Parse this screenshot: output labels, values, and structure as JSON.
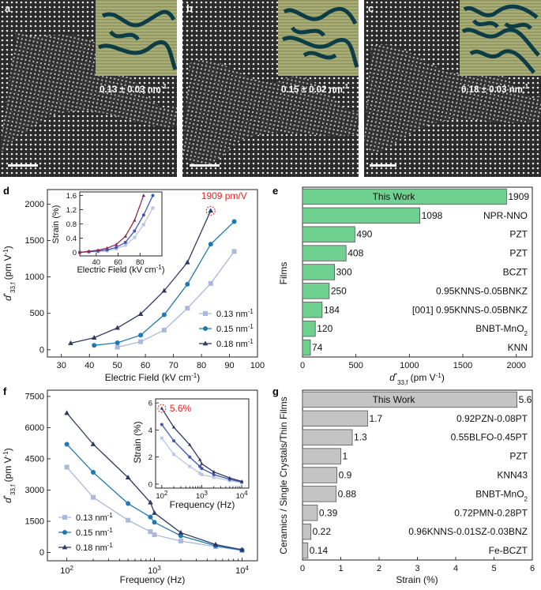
{
  "panels": {
    "a": {
      "label": "a",
      "annotation": "0.13 ± 0.03 nm",
      "sup": "-1"
    },
    "b": {
      "label": "b",
      "annotation": "0.15 ± 0.02 nm",
      "sup": "-1"
    },
    "c": {
      "label": "c",
      "annotation": "0.18 ± 0.03 nm",
      "sup": "-1"
    },
    "d": {
      "label": "d"
    },
    "e": {
      "label": "e"
    },
    "f": {
      "label": "f"
    },
    "g": {
      "label": "g"
    }
  },
  "colors": {
    "light": "#a9b8dc",
    "mid": "#1f78b4",
    "dark": "#2f3a64",
    "inset_light": "#b9c6e6",
    "inset_mid": "#3f57b3",
    "inset_dark": "#8e2a55",
    "bar_green": "#6fd18f",
    "bar_gray": "#c4c4c4",
    "highlight": "#e8231f"
  },
  "chart_data": [
    {
      "panel": "d",
      "type": "line",
      "xlabel": "Electric Field (kV cm",
      "xlabel_sup": "-1",
      "ylabel": "d",
      "ylabel_sub": "33,f",
      "ylabel_unit": "(pm V",
      "xlim": [
        25,
        100
      ],
      "ylim": [
        -100,
        2200
      ],
      "xticks": [
        30,
        40,
        50,
        60,
        70,
        80,
        90,
        100
      ],
      "yticks": [
        0,
        500,
        1000,
        1500,
        2000
      ],
      "series": [
        {
          "name": "0.13 nm",
          "marker": "square",
          "color": "light",
          "x": [
            50,
            58.3,
            66.7,
            75,
            83.3,
            91.7
          ],
          "y": [
            35,
            110,
            270,
            570,
            910,
            1350
          ]
        },
        {
          "name": "0.15 nm",
          "marker": "circle",
          "color": "mid",
          "x": [
            41.7,
            50,
            58.3,
            66.7,
            75,
            83.3,
            91.7
          ],
          "y": [
            60,
            95,
            200,
            480,
            900,
            1450,
            1760
          ]
        },
        {
          "name": "0.18 nm",
          "marker": "triangle",
          "color": "dark",
          "x": [
            33.3,
            41.7,
            50,
            58.3,
            66.7,
            75,
            83.3
          ],
          "y": [
            90,
            165,
            300,
            490,
            810,
            1200,
            1909
          ]
        }
      ],
      "annotation": "1909 pm/V",
      "inset": {
        "xlabel": "Electric Field (kV cm",
        "xlabel_sup": "-1",
        "ylabel": "Strain (%)",
        "xlim": [
          25,
          100
        ],
        "ylim": [
          -0.1,
          1.7
        ],
        "xticks": [
          40,
          60,
          80
        ],
        "yticks": [
          0.0,
          0.4,
          0.8,
          1.2,
          1.6
        ],
        "series": [
          {
            "color": "inset_light",
            "marker": "square",
            "x": [
              25,
              33.3,
              41.7,
              50,
              58.3,
              66.7,
              75,
              83.3,
              91.7
            ],
            "y": [
              0.0,
              0.01,
              0.02,
              0.04,
              0.1,
              0.2,
              0.42,
              0.78,
              1.25
            ]
          },
          {
            "color": "inset_mid",
            "marker": "circle",
            "x": [
              25,
              33.3,
              41.7,
              50,
              58.3,
              66.7,
              75,
              83.3,
              91.7
            ],
            "y": [
              0.0,
              0.02,
              0.04,
              0.07,
              0.14,
              0.28,
              0.6,
              1.05,
              1.6
            ]
          },
          {
            "color": "inset_dark",
            "marker": "triangle",
            "x": [
              25,
              33.3,
              41.7,
              50,
              58.3,
              66.7,
              75,
              83.3
            ],
            "y": [
              0.0,
              0.03,
              0.06,
              0.12,
              0.22,
              0.45,
              0.9,
              1.6
            ]
          }
        ]
      }
    },
    {
      "panel": "e",
      "type": "bar",
      "orientation": "horizontal",
      "ylabel": "Films",
      "xlabel": "d",
      "xlabel_sub": "33,f",
      "xlabel_unit": "(pm V",
      "xlim": [
        0,
        2150
      ],
      "xticks": [
        0,
        500,
        1000,
        1500,
        2000
      ],
      "categories": [
        "This Work",
        "NPR-NNO",
        "PZT",
        "PZT",
        "BCZT",
        "0.95KNNS-0.05BNKZ",
        "[001] 0.95KNNS-0.05BNKZ",
        "BNBT-MnO",
        "KNN"
      ],
      "category_subs": [
        "",
        "",
        "",
        "",
        "",
        "",
        "",
        "2",
        ""
      ],
      "values": [
        1909,
        1098,
        490,
        408,
        300,
        250,
        184,
        120,
        74
      ]
    },
    {
      "panel": "f",
      "type": "line",
      "xscale": "log",
      "xlabel": "Frequency (Hz)",
      "ylabel": "d",
      "ylabel_sub": "33,f",
      "ylabel_unit": "(pm V",
      "xlim": [
        60,
        15000
      ],
      "ylim": [
        -400,
        7800
      ],
      "xticks": [
        100,
        1000,
        10000
      ],
      "yticks": [
        0,
        1500,
        3000,
        4500,
        6000,
        7500
      ],
      "series": [
        {
          "name": "0.13 nm",
          "marker": "square",
          "color": "light",
          "x": [
            100,
            200,
            500,
            900,
            1000,
            2000,
            5000,
            10000
          ],
          "y": [
            4100,
            2650,
            1550,
            1000,
            850,
            550,
            280,
            100
          ]
        },
        {
          "name": "0.15 nm",
          "marker": "circle",
          "color": "mid",
          "x": [
            100,
            200,
            500,
            900,
            1000,
            2000,
            5000,
            10000
          ],
          "y": [
            5200,
            3850,
            2350,
            1700,
            1450,
            800,
            320,
            110
          ]
        },
        {
          "name": "0.18 nm",
          "marker": "triangle",
          "color": "dark",
          "x": [
            100,
            200,
            500,
            900,
            1000,
            2000,
            5000,
            10000
          ],
          "y": [
            6700,
            5200,
            3600,
            2400,
            1900,
            950,
            380,
            130
          ]
        }
      ],
      "inset": {
        "xlabel": "Frequency (Hz)",
        "ylabel": "Strain (%)",
        "xlim": [
          70,
          15000
        ],
        "ylim": [
          -0.3,
          6.3
        ],
        "yticks": [
          0,
          2,
          4,
          6
        ],
        "annotation": "5.6%",
        "series": [
          {
            "color": "inset_light",
            "marker": "square",
            "x": [
              100,
              200,
              500,
              900,
              1000,
              2000,
              5000,
              10000
            ],
            "y": [
              3.4,
              2.2,
              1.3,
              0.8,
              0.7,
              0.5,
              0.25,
              0.1
            ]
          },
          {
            "color": "inset_mid",
            "marker": "circle",
            "x": [
              100,
              200,
              500,
              900,
              1000,
              2000,
              5000,
              10000
            ],
            "y": [
              4.4,
              3.2,
              2.0,
              1.3,
              1.15,
              0.7,
              0.35,
              0.15
            ]
          },
          {
            "color": "dark",
            "marker": "triangle",
            "x": [
              100,
              200,
              500,
              900,
              1000,
              2000,
              5000,
              10000
            ],
            "y": [
              5.6,
              4.2,
              2.9,
              1.8,
              1.5,
              0.9,
              0.45,
              0.2
            ]
          }
        ]
      }
    },
    {
      "panel": "g",
      "type": "bar",
      "orientation": "horizontal",
      "ylabel": "Ceramics / Single Crystals/Thin Films",
      "xlabel": "Strain (%)",
      "xlim": [
        0,
        6
      ],
      "xticks": [
        0,
        1,
        2,
        3,
        4,
        5,
        6
      ],
      "categories": [
        "This Work",
        "0.92PZN-0.08PT",
        "0.55BLFO-0.45PT",
        "PZT",
        "KNN43",
        "BNBT-MnO",
        "0.72PMN-0.28PT",
        "0.96KNNS-0.01SZ-0.03BNZ",
        "Fe-BCZT"
      ],
      "category_subs": [
        "",
        "",
        "",
        "",
        "",
        "2",
        "",
        "",
        ""
      ],
      "values": [
        5.6,
        1.7,
        1.3,
        1.0,
        0.9,
        0.88,
        0.39,
        0.22,
        0.14
      ],
      "value_labels": [
        "5.6",
        "1.7",
        "1.3",
        "1",
        "0.9",
        "0.88",
        "0.39",
        "0.22",
        "0.14"
      ]
    }
  ]
}
